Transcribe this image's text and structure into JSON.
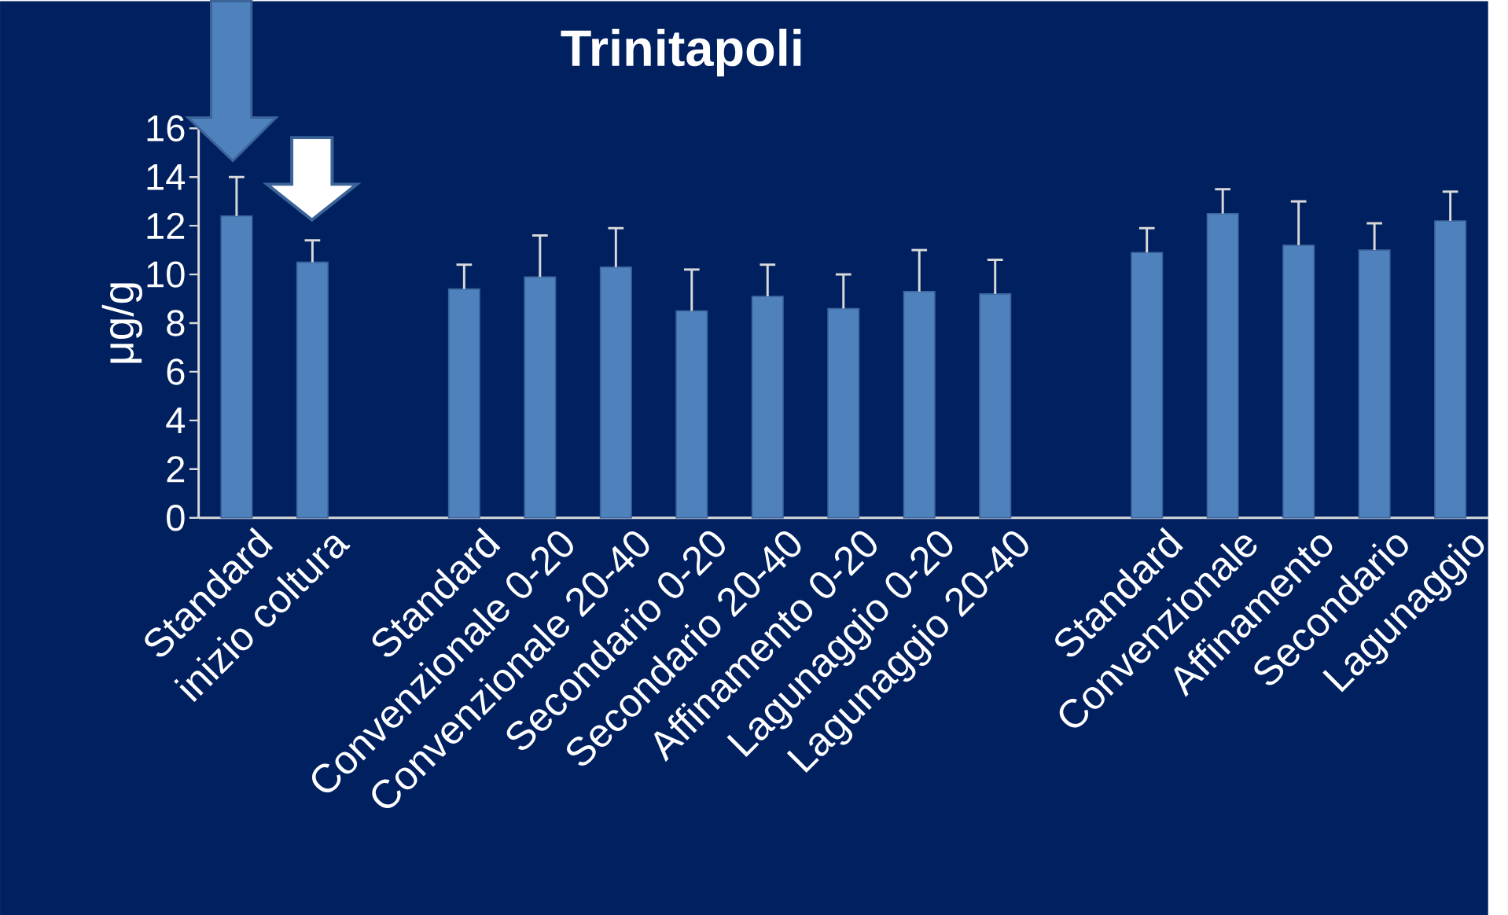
{
  "chart_data": {
    "type": "bar",
    "title": "Trinitapoli",
    "ylabel": "μg/g",
    "categories": [
      "Standard",
      "inizio coltura",
      null,
      "Standard",
      "Convenzionale 0-20",
      "Convenzionale 20-40",
      "Secondario 0-20",
      "Secondario 20-40",
      "Affinamento 0-20",
      "Lagunaggio 0-20",
      "Lagunaggio 20-40",
      null,
      "Standard",
      "Convenzionale",
      "Affinamento",
      "Secondario",
      "Lagunaggio"
    ],
    "values": [
      12.4,
      10.5,
      null,
      9.4,
      9.9,
      10.3,
      8.5,
      9.1,
      8.6,
      9.3,
      9.2,
      null,
      10.9,
      12.5,
      11.2,
      11.0,
      12.2
    ],
    "errors": [
      [
        12.4,
        14.0
      ],
      [
        10.5,
        11.4
      ],
      null,
      [
        9.4,
        10.4
      ],
      [
        9.9,
        11.6
      ],
      [
        10.3,
        11.9
      ],
      [
        8.5,
        10.2
      ],
      [
        9.1,
        10.4
      ],
      [
        8.6,
        10.0
      ],
      [
        9.3,
        11.0
      ],
      [
        9.2,
        10.6
      ],
      null,
      [
        10.9,
        11.9
      ],
      [
        12.5,
        13.5
      ],
      [
        11.2,
        13.0
      ],
      [
        11.0,
        12.1
      ],
      [
        12.2,
        13.4
      ]
    ],
    "color": "#4f81bd",
    "ylim": [
      0,
      16
    ],
    "yticks": [
      0,
      2,
      4,
      6,
      8,
      10,
      12,
      14,
      16
    ]
  }
}
